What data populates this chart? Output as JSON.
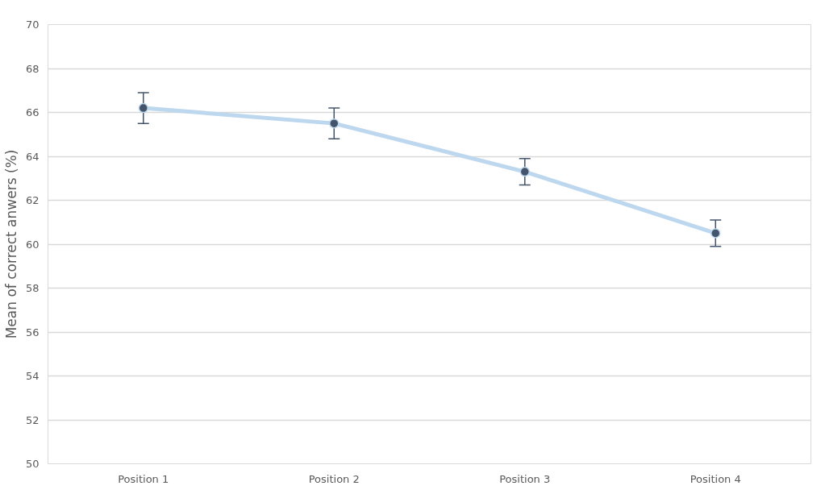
{
  "chart_data": {
    "type": "line",
    "ylabel": "Mean of correct anwers (%)",
    "categories": [
      "Position 1",
      "Position 2",
      "Position 3",
      "Position 4"
    ],
    "series": [
      {
        "color": "#bdd7ee",
        "values": [
          66.2,
          65.5,
          63.3,
          60.5
        ],
        "errors": [
          0.7,
          0.7,
          0.6,
          0.6
        ]
      }
    ],
    "marker": "circle",
    "ylim": [
      50,
      70
    ],
    "yticks": [
      50,
      52,
      54,
      56,
      58,
      60,
      62,
      64,
      66,
      68,
      70
    ],
    "grid": "y"
  }
}
